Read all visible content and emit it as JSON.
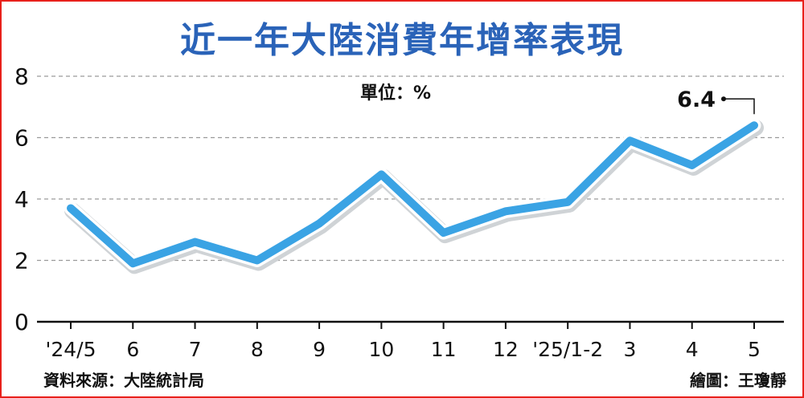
{
  "title": "近一年大陸消費年增率表現",
  "unit_label": "單位：%",
  "source": "資料來源：大陸統計局",
  "credit": "繪圖：王瓊靜",
  "colors": {
    "title": "#2a63b8",
    "line": "#3aa3e4",
    "frame": "#e8211b"
  },
  "chart_data": {
    "type": "line",
    "categories": [
      "'24/5",
      "6",
      "7",
      "8",
      "9",
      "10",
      "11",
      "12",
      "'25/1-2",
      "3",
      "4",
      "5"
    ],
    "values": [
      3.7,
      1.9,
      2.6,
      2.0,
      3.2,
      4.8,
      2.9,
      3.6,
      3.9,
      5.9,
      5.1,
      6.4
    ],
    "y_ticks": [
      0,
      2,
      4,
      6,
      8
    ],
    "ylim": [
      0,
      8
    ],
    "grid": true,
    "annotation": {
      "index": 11,
      "text": "6.4"
    }
  }
}
